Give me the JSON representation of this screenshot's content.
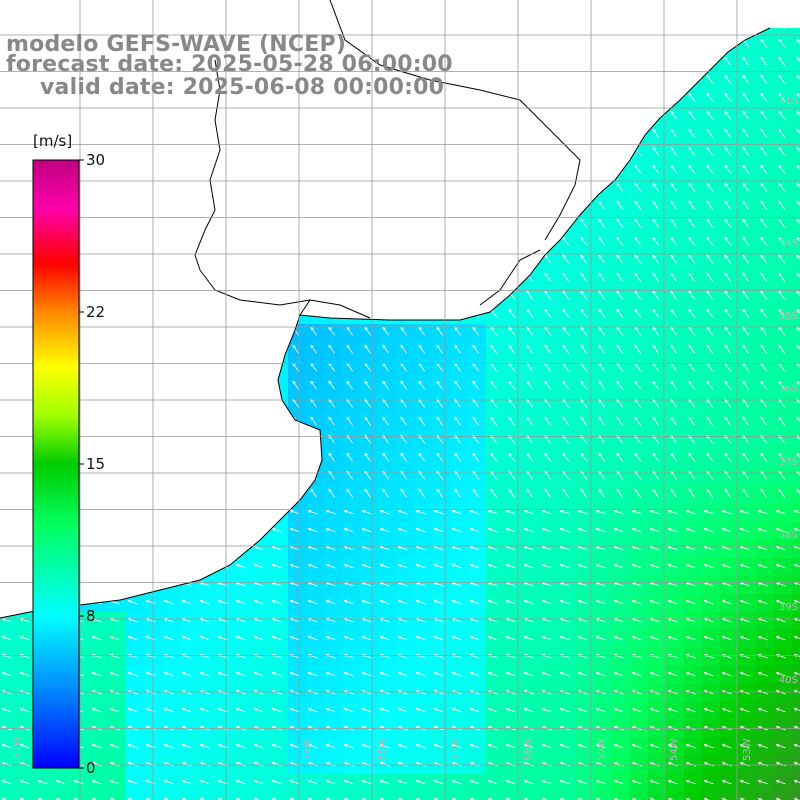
{
  "title": {
    "line1": "modelo GEFS-WAVE (NCEP)",
    "line2": "forecast date: 2025-05-28 06:00:00",
    "line3": "valid date: 2025-06-08 00:00:00"
  },
  "colorbar": {
    "unit": "[m/s]",
    "ticks": [
      "30",
      "22",
      "15",
      "8",
      "0"
    ],
    "min": 0,
    "max": 30,
    "colors": [
      "#0000ff",
      "#0066ff",
      "#00bfff",
      "#00ffff",
      "#00ff80",
      "#00cc00",
      "#80ff00",
      "#ffff00",
      "#ff9900",
      "#ff0000",
      "#ff00aa",
      "#c00080"
    ]
  },
  "map": {
    "lat_labels": [
      "31S",
      "34S",
      "35S",
      "36S",
      "37S",
      "38S",
      "39S",
      "40S"
    ],
    "lon_labels": [
      "61W",
      "59W",
      "58W",
      "57W",
      "56W",
      "55W",
      "54W",
      "53W"
    ],
    "wind_field_description_colors": {
      "land": "#ffffff",
      "coast": "#000000",
      "grid": "#999999",
      "arrow": "#ffffff"
    }
  }
}
